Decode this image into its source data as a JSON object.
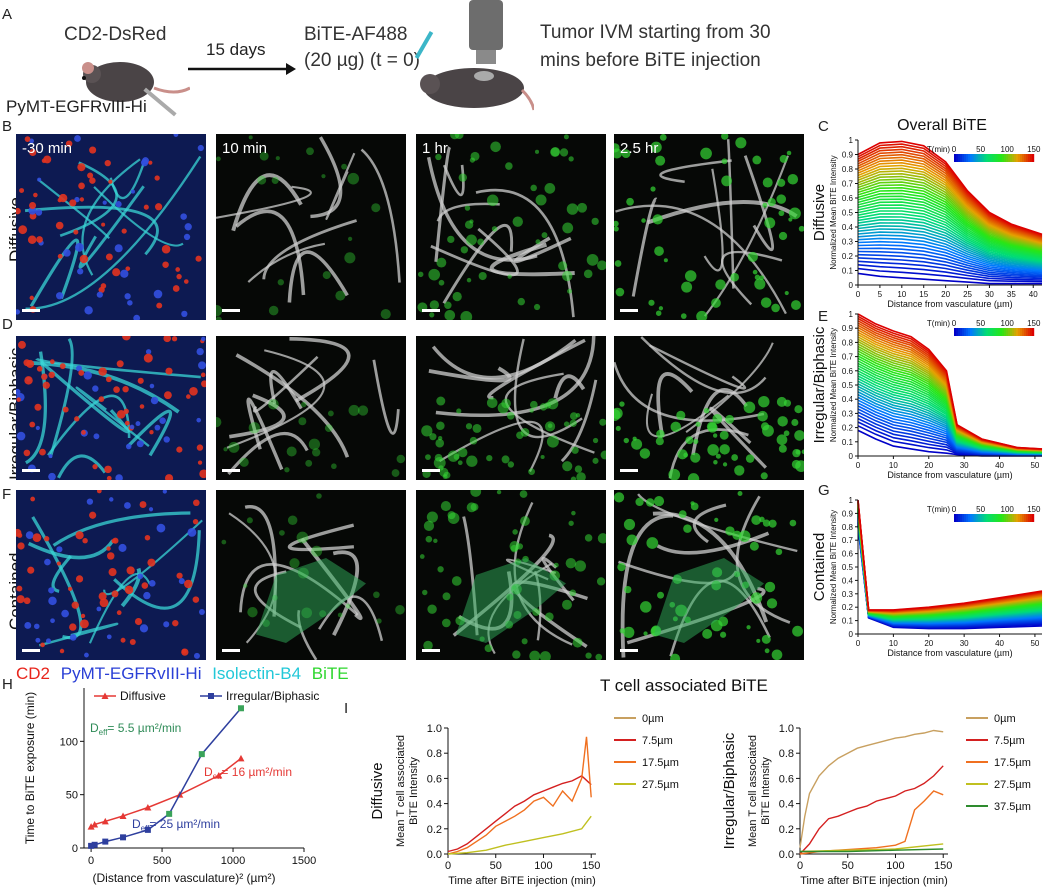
{
  "panel_letters": [
    "A",
    "B",
    "C",
    "D",
    "E",
    "F",
    "G",
    "H",
    "I"
  ],
  "panelA": {
    "mouse_label": "CD2-DsRed",
    "tumor_label": "PyMT-EGFRvIII-Hi",
    "interval": "15 days",
    "bite_label": "BiTE-AF488",
    "dose": "(20 µg) (t = 0)",
    "ivm_line1": "Tumor IVM starting from 30",
    "ivm_line2": "mins before BiTE injection"
  },
  "microscopy": {
    "timepoints": [
      "-30 min",
      "10 min",
      "1 hr",
      "2.5 hr"
    ],
    "rows": [
      "Diffusive",
      "Irregular/Biphasic",
      "Contained"
    ]
  },
  "channel_legend": [
    {
      "label": "CD2",
      "color": "#e8251c"
    },
    {
      "label": "PyMT-EGFRvIII-Hi",
      "color": "#2a3fd6"
    },
    {
      "label": "Isolectin-B4",
      "color": "#22c8d8"
    },
    {
      "label": "BiTE",
      "color": "#2ed62e"
    }
  ],
  "colorbar": {
    "label": "T(min)",
    "ticks": [
      "0",
      "50",
      "100",
      "150"
    ]
  },
  "chart_data": [
    {
      "id": "C",
      "type": "line",
      "title": "Overall BiTE",
      "row_label": "Diffusive",
      "xlabel": "Distance from vasculature (µm)",
      "ylabel": "Normalized Mean BiTE Intensity",
      "xlim": [
        0,
        42
      ],
      "ylim": [
        0,
        1
      ],
      "xticks": [
        0,
        5,
        10,
        15,
        20,
        25,
        30,
        35,
        40
      ],
      "yticks": [
        0,
        0.1,
        0.2,
        0.3,
        0.4,
        0.5,
        0.6,
        0.7,
        0.8,
        0.9,
        1
      ],
      "x": [
        0,
        5,
        10,
        15,
        20,
        25,
        30,
        35,
        42
      ],
      "series_final": [
        0.9,
        0.98,
        0.99,
        0.96,
        0.85,
        0.65,
        0.5,
        0.42,
        0.35
      ],
      "series_initial": [
        0.08,
        0.06,
        0.05,
        0.04,
        0.03,
        0.02,
        0.01,
        0.01,
        0.01
      ],
      "n_series": 45
    },
    {
      "id": "E",
      "type": "line",
      "row_label": "Irregular/Biphasic",
      "xlabel": "Distance from vasculature (µm)",
      "ylabel": "Normalized Mean BiTE Intensity",
      "xlim": [
        0,
        52
      ],
      "ylim": [
        0,
        1
      ],
      "xticks": [
        0,
        10,
        20,
        30,
        40,
        50
      ],
      "yticks": [
        0,
        0.1,
        0.2,
        0.3,
        0.4,
        0.5,
        0.6,
        0.7,
        0.8,
        0.9,
        1
      ],
      "x": [
        0,
        5,
        10,
        15,
        20,
        25,
        28,
        35,
        45,
        52
      ],
      "series_final": [
        1.0,
        0.93,
        0.88,
        0.84,
        0.75,
        0.6,
        0.22,
        0.12,
        0.06,
        0.05
      ],
      "series_initial": [
        0.18,
        0.12,
        0.07,
        0.05,
        0.03,
        0.02,
        0.01,
        0.0,
        0.0,
        0.0
      ],
      "n_series": 45
    },
    {
      "id": "G",
      "type": "line",
      "row_label": "Contained",
      "xlabel": "Distance from vasculature (µm)",
      "ylabel": "Normalized Mean BiTE Intensity",
      "xlim": [
        0,
        52
      ],
      "ylim": [
        0,
        1
      ],
      "xticks": [
        0,
        10,
        20,
        30,
        40,
        50
      ],
      "yticks": [
        0,
        0.1,
        0.2,
        0.3,
        0.4,
        0.5,
        0.6,
        0.7,
        0.8,
        0.9,
        1
      ],
      "x": [
        0,
        3,
        10,
        20,
        30,
        40,
        52
      ],
      "series_final": [
        1.0,
        0.18,
        0.18,
        0.2,
        0.23,
        0.27,
        0.32
      ],
      "series_initial": [
        0.8,
        0.12,
        0.05,
        0.04,
        0.04,
        0.05,
        0.06
      ],
      "n_series": 45
    },
    {
      "id": "H",
      "type": "line",
      "xlabel": "(Distance from vasculature)² (µm²)",
      "ylabel": "Time to BiTE exposure (min)",
      "xlim": [
        -50,
        1500
      ],
      "ylim": [
        0,
        150
      ],
      "xticks": [
        0,
        500,
        1000,
        1500
      ],
      "yticks": [
        0,
        50,
        100
      ],
      "series": [
        {
          "name": "Diffusive",
          "color": "#e53935",
          "marker": "triangle",
          "x": [
            0,
            25,
            100,
            225,
            400,
            625,
            900,
            1056
          ],
          "y": [
            20,
            22,
            25,
            30,
            38,
            50,
            68,
            84
          ]
        },
        {
          "name": "Irregular/Biphasic",
          "color": "#2e3f9e",
          "marker": "square",
          "x": [
            0,
            25,
            100,
            225,
            400,
            550,
            780,
            1056
          ],
          "y": [
            2,
            3,
            6,
            10,
            17,
            32,
            88,
            131
          ]
        }
      ],
      "annotations": [
        {
          "text": "D",
          "sub": "eff",
          "rest": "= 5.5 µm²/min",
          "color": "#2e8b57"
        },
        {
          "text": "D",
          "sub": "eff",
          "rest": "= 16 µm²/min",
          "color": "#e53935"
        },
        {
          "text": "D",
          "sub": "eff",
          "rest": "= 25 µm²/min",
          "color": "#2e3f9e"
        }
      ]
    },
    {
      "id": "I-left",
      "type": "line",
      "title": "T cell associated BiTE",
      "row_label": "Diffusive",
      "xlabel": "Time after BiTE injection (min)",
      "ylabel": "Mean T cell associated BiTE Intensity",
      "xlim": [
        0,
        155
      ],
      "ylim": [
        0,
        1
      ],
      "xticks": [
        0,
        50,
        100,
        150
      ],
      "yticks": [
        0,
        0.2,
        0.4,
        0.6,
        0.8,
        1.0
      ],
      "series": [
        {
          "name": "0µm",
          "color": "#c8a060",
          "x": [],
          "y": []
        },
        {
          "name": "7.5µm",
          "color": "#d42020",
          "x": [
            0,
            10,
            20,
            30,
            40,
            50,
            60,
            70,
            80,
            90,
            100,
            110,
            120,
            130,
            140,
            150
          ],
          "y": [
            0.02,
            0.04,
            0.08,
            0.14,
            0.2,
            0.26,
            0.32,
            0.38,
            0.42,
            0.47,
            0.5,
            0.53,
            0.56,
            0.58,
            0.62,
            0.55
          ]
        },
        {
          "name": "17.5µm",
          "color": "#f07020",
          "x": [
            0,
            10,
            20,
            30,
            40,
            50,
            60,
            70,
            80,
            90,
            100,
            110,
            120,
            130,
            140,
            145,
            150
          ],
          "y": [
            0.0,
            0.02,
            0.05,
            0.1,
            0.15,
            0.22,
            0.26,
            0.3,
            0.35,
            0.42,
            0.45,
            0.38,
            0.5,
            0.42,
            0.6,
            0.93,
            0.45
          ]
        },
        {
          "name": "27.5µm",
          "color": "#c0c020",
          "x": [
            0,
            20,
            40,
            60,
            80,
            100,
            120,
            140,
            150
          ],
          "y": [
            0,
            0.01,
            0.03,
            0.07,
            0.1,
            0.13,
            0.16,
            0.2,
            0.3
          ]
        }
      ]
    },
    {
      "id": "I-right",
      "type": "line",
      "row_label": "Irregular/Biphasic",
      "xlabel": "Time after BiTE injection (min)",
      "ylabel": "Mean T cell associated BiTE Intensity",
      "xlim": [
        0,
        155
      ],
      "ylim": [
        0,
        1
      ],
      "xticks": [
        0,
        50,
        100,
        150
      ],
      "yticks": [
        0,
        0.2,
        0.4,
        0.6,
        0.8,
        1.0
      ],
      "series": [
        {
          "name": "0µm",
          "color": "#c8a060",
          "x": [
            0,
            5,
            10,
            20,
            30,
            40,
            50,
            60,
            70,
            80,
            90,
            100,
            110,
            120,
            130,
            140,
            150
          ],
          "y": [
            0.05,
            0.3,
            0.48,
            0.62,
            0.7,
            0.76,
            0.8,
            0.84,
            0.86,
            0.88,
            0.9,
            0.92,
            0.93,
            0.95,
            0.96,
            0.98,
            0.97
          ]
        },
        {
          "name": "7.5µm",
          "color": "#d42020",
          "x": [
            0,
            10,
            20,
            30,
            40,
            50,
            60,
            70,
            80,
            90,
            100,
            110,
            120,
            130,
            140,
            150
          ],
          "y": [
            0,
            0.08,
            0.2,
            0.28,
            0.3,
            0.33,
            0.36,
            0.38,
            0.42,
            0.44,
            0.46,
            0.5,
            0.52,
            0.56,
            0.62,
            0.7
          ]
        },
        {
          "name": "17.5µm",
          "color": "#f07020",
          "x": [
            0,
            20,
            40,
            60,
            80,
            100,
            110,
            120,
            130,
            140,
            150
          ],
          "y": [
            0,
            0.02,
            0.03,
            0.04,
            0.05,
            0.07,
            0.1,
            0.35,
            0.42,
            0.5,
            0.47
          ]
        },
        {
          "name": "27.5µm",
          "color": "#c0c020",
          "x": [
            0,
            50,
            100,
            150
          ],
          "y": [
            0.02,
            0.03,
            0.04,
            0.08
          ]
        },
        {
          "name": "37.5µm",
          "color": "#2e8b2e",
          "x": [
            0,
            50,
            100,
            150
          ],
          "y": [
            0.02,
            0.02,
            0.03,
            0.04
          ]
        }
      ]
    }
  ]
}
